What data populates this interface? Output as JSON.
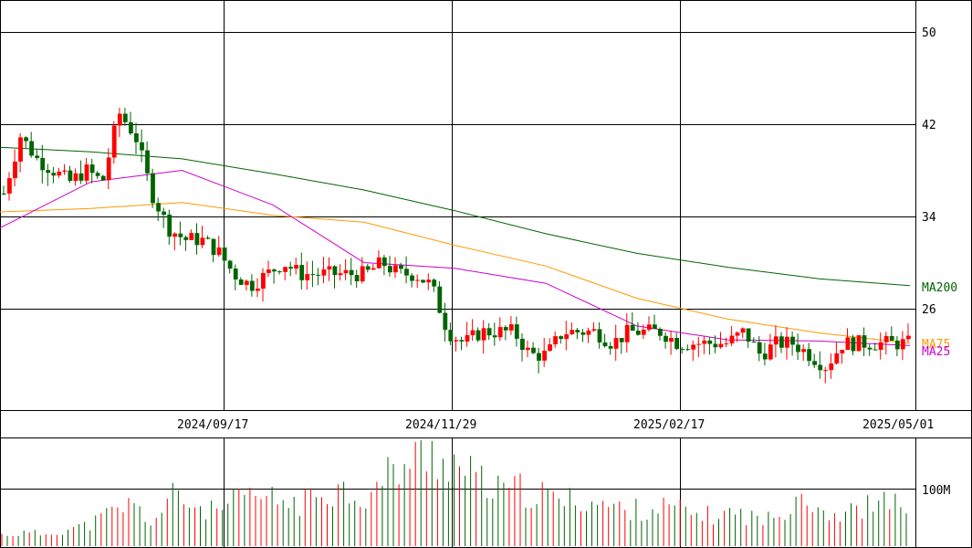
{
  "chart_data": [
    {
      "type": "candlestick",
      "title": "",
      "ylim": [
        22,
        53
      ],
      "y_ticks": [
        "50",
        "42",
        "34",
        "26"
      ],
      "x_tick_labels": [
        "2024/09/17",
        "2024/11/29",
        "2025/02/17",
        "2025/05/01"
      ],
      "grid": true,
      "colors": {
        "up": "#ff0000",
        "down": "#006400",
        "ma200": "#006400",
        "ma75": "#ff9900",
        "ma25": "#cc00cc"
      },
      "series": [
        {
          "name": "MA200",
          "label": "MA200",
          "values": [
            40.0,
            39.6,
            39.0,
            37.7,
            36.3,
            34.5,
            32.5,
            30.8,
            29.6,
            28.6,
            28.0
          ]
        },
        {
          "name": "MA75",
          "label": "MA75",
          "values": [
            34.4,
            34.7,
            35.2,
            34.1,
            33.5,
            31.5,
            29.7,
            26.9,
            25.1,
            23.9,
            23.0
          ]
        },
        {
          "name": "MA25",
          "label": "MA25",
          "values": [
            33.0,
            37.0,
            38.0,
            35.0,
            30.0,
            29.5,
            28.2,
            24.5,
            23.3,
            23.2,
            22.8
          ]
        }
      ],
      "price_path": [
        36,
        41,
        39,
        38,
        37,
        38,
        37,
        43,
        41,
        36,
        33,
        32,
        32,
        31,
        29,
        28,
        29,
        30,
        29,
        29,
        29,
        29,
        29,
        30,
        29,
        29,
        28,
        24,
        23,
        24,
        24,
        24,
        22,
        22,
        24,
        24,
        24,
        23,
        24,
        24,
        24,
        23,
        23,
        23,
        23,
        24,
        22,
        23,
        23,
        22,
        21,
        23,
        23,
        23,
        23,
        23
      ]
    },
    {
      "type": "bar",
      "title": "",
      "y_tick_label": "100M",
      "values_relative": [
        0.12,
        0.14,
        0.13,
        0.18,
        0.22,
        0.35,
        0.45,
        0.25,
        0.55,
        0.42,
        0.36,
        0.5,
        0.52,
        0.48,
        0.45,
        0.62,
        0.6,
        0.5,
        0.78,
        0.9,
        1.0,
        0.88,
        0.72,
        0.58,
        0.6,
        0.55,
        0.48,
        0.5,
        0.44,
        0.38,
        0.4,
        0.42,
        0.35,
        0.32,
        0.36,
        0.3,
        0.28,
        0.62,
        0.4,
        0.32,
        0.42,
        0.45,
        0.48
      ]
    }
  ]
}
